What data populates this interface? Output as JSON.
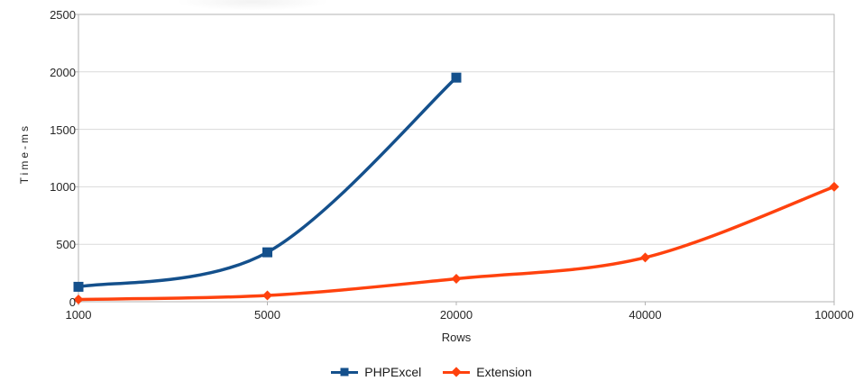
{
  "chart_data": {
    "type": "line",
    "title": "",
    "xlabel": "Rows",
    "ylabel": "Time-ms",
    "categories": [
      "1000",
      "5000",
      "20000",
      "40000",
      "100000"
    ],
    "yticks": [
      0,
      500,
      1000,
      1500,
      2000,
      2500
    ],
    "ylim": [
      0,
      2500
    ],
    "grid": "horizontal-only",
    "line_style": "smooth",
    "legend_position": "bottom-center",
    "colors": {
      "axis": "#b3b3b3",
      "gridline": "#dadada",
      "tick_text": "#262626"
    },
    "series": [
      {
        "name": "PHPExcel",
        "color": "#14508c",
        "marker": "square",
        "values": [
          130,
          430,
          1950,
          null,
          null
        ]
      },
      {
        "name": "Extension",
        "color": "#ff420e",
        "marker": "diamond",
        "values": [
          20,
          55,
          200,
          385,
          1000
        ]
      }
    ]
  }
}
